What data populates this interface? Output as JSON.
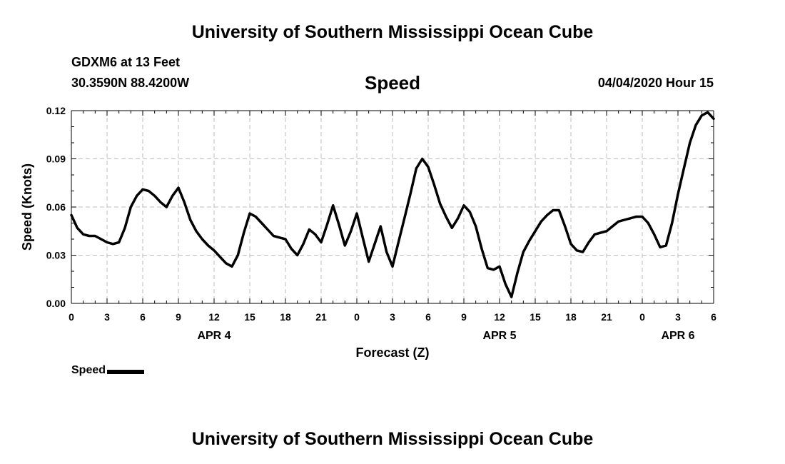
{
  "header": {
    "top_title": "University of Southern Mississippi Ocean Cube",
    "station_line": "GDXM6 at 13 Feet",
    "coords_line": "30.3590N 88.4200W",
    "chart_title": "Speed",
    "timestamp": "04/04/2020 Hour 15"
  },
  "footer": {
    "bottom_title": "University of Southern Mississippi Ocean Cube"
  },
  "legend": {
    "label": "Speed"
  },
  "chart_data": {
    "type": "line",
    "title": "Speed",
    "xlabel": "Forecast (Z)",
    "ylabel": "Speed (Knots)",
    "xlim": [
      0,
      54
    ],
    "ylim": [
      0,
      0.12
    ],
    "grid": true,
    "yticks": [
      0,
      0.03,
      0.06,
      0.09,
      0.12
    ],
    "ytick_labels": [
      "0.00",
      "0.03",
      "0.06",
      "0.09",
      "0.12"
    ],
    "xticks": [
      0,
      3,
      6,
      9,
      12,
      15,
      18,
      21,
      24,
      27,
      30,
      33,
      36,
      39,
      42,
      45,
      48,
      51,
      54
    ],
    "xtick_labels": [
      "0",
      "3",
      "6",
      "9",
      "12",
      "15",
      "18",
      "21",
      "0",
      "3",
      "6",
      "9",
      "12",
      "15",
      "18",
      "21",
      "0",
      "3",
      "6"
    ],
    "day_labels": [
      {
        "label": "APR 4",
        "hour": 12
      },
      {
        "label": "APR 5",
        "hour": 36
      },
      {
        "label": "APR 6",
        "hour": 51
      }
    ],
    "series": [
      {
        "name": "Speed",
        "color": "#000000",
        "x": [
          0,
          0.5,
          1,
          1.5,
          2,
          2.5,
          3,
          3.5,
          4,
          4.5,
          5,
          5.5,
          6,
          6.5,
          7,
          7.5,
          8,
          8.5,
          9,
          9.5,
          10,
          10.5,
          11,
          11.5,
          12,
          12.5,
          13,
          13.5,
          14,
          14.5,
          15,
          15.5,
          16,
          16.5,
          17,
          17.5,
          18,
          18.5,
          19,
          19.5,
          20,
          20.5,
          21,
          21.5,
          22,
          22.5,
          23,
          23.5,
          24,
          24.5,
          25,
          25.5,
          26,
          26.5,
          27,
          27.5,
          28,
          28.5,
          29,
          29.5,
          30,
          30.5,
          31,
          31.5,
          32,
          32.5,
          33,
          33.5,
          34,
          34.5,
          35,
          35.5,
          36,
          36.5,
          37,
          37.5,
          38,
          38.5,
          39,
          39.5,
          40,
          40.5,
          41,
          41.5,
          42,
          42.5,
          43,
          43.5,
          44,
          44.5,
          45,
          45.5,
          46,
          46.5,
          47,
          47.5,
          48,
          48.5,
          49,
          49.5,
          50,
          50.5,
          51,
          51.5,
          52,
          52.5,
          53,
          53.5,
          54
        ],
        "values": [
          0.055,
          0.047,
          0.043,
          0.042,
          0.042,
          0.04,
          0.038,
          0.037,
          0.038,
          0.047,
          0.06,
          0.067,
          0.071,
          0.07,
          0.067,
          0.063,
          0.06,
          0.067,
          0.072,
          0.063,
          0.052,
          0.045,
          0.04,
          0.036,
          0.033,
          0.029,
          0.025,
          0.023,
          0.03,
          0.044,
          0.056,
          0.054,
          0.05,
          0.046,
          0.042,
          0.041,
          0.04,
          0.034,
          0.03,
          0.037,
          0.046,
          0.043,
          0.038,
          0.049,
          0.061,
          0.049,
          0.036,
          0.045,
          0.056,
          0.041,
          0.026,
          0.037,
          0.048,
          0.032,
          0.023,
          0.038,
          0.053,
          0.068,
          0.084,
          0.09,
          0.085,
          0.074,
          0.062,
          0.054,
          0.047,
          0.053,
          0.061,
          0.057,
          0.048,
          0.034,
          0.022,
          0.021,
          0.023,
          0.012,
          0.004,
          0.019,
          0.032,
          0.039,
          0.045,
          0.051,
          0.055,
          0.058,
          0.058,
          0.048,
          0.037,
          0.033,
          0.032,
          0.038,
          0.043,
          0.044,
          0.045,
          0.048,
          0.051,
          0.052,
          0.053,
          0.054,
          0.054,
          0.05,
          0.043,
          0.035,
          0.036,
          0.05,
          0.068,
          0.084,
          0.1,
          0.111,
          0.117,
          0.119,
          0.115
        ]
      }
    ]
  }
}
